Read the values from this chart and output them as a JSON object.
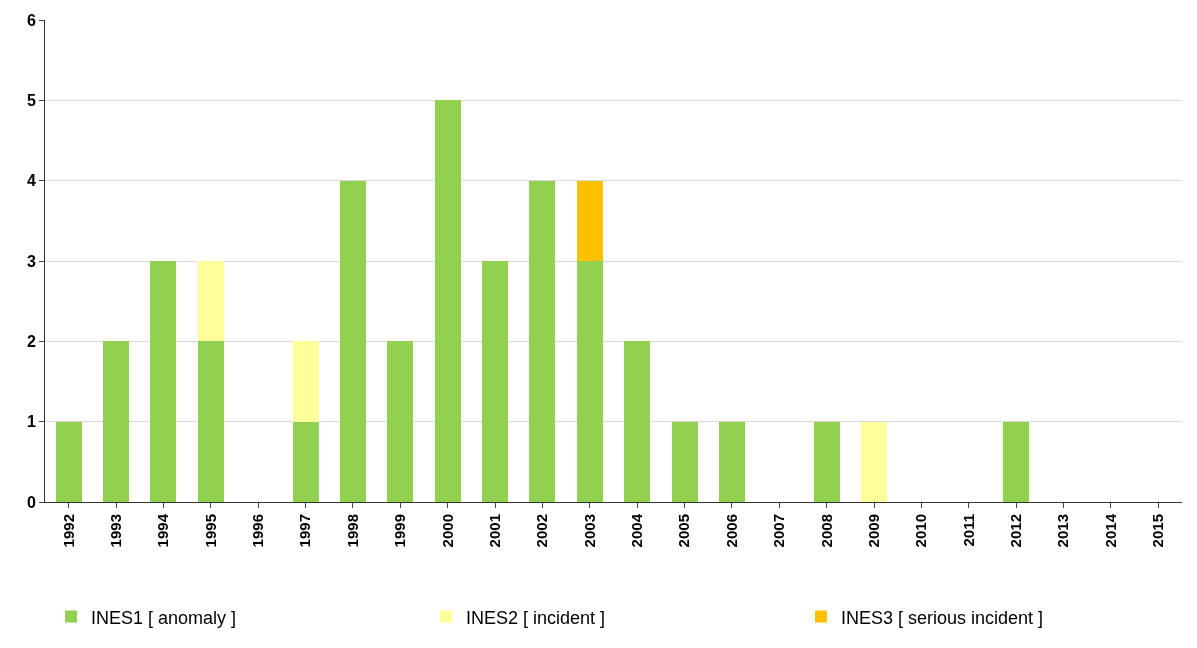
{
  "chart_data": {
    "type": "bar",
    "stacked": true,
    "categories": [
      "1992",
      "1993",
      "1994",
      "1995",
      "1996",
      "1997",
      "1998",
      "1999",
      "2000",
      "2001",
      "2002",
      "2003",
      "2004",
      "2005",
      "2006",
      "2007",
      "2008",
      "2009",
      "2010",
      "2011",
      "2012",
      "2013",
      "2014",
      "2015"
    ],
    "series": [
      {
        "name": "INES1 [ anomaly ]",
        "color": "#92d050",
        "values": [
          1,
          2,
          3,
          2,
          0,
          1,
          4,
          2,
          5,
          3,
          4,
          3,
          2,
          1,
          1,
          0,
          1,
          0,
          0,
          0,
          1,
          0,
          0,
          0
        ]
      },
      {
        "name": "INES2 [ incident ]",
        "color": "#ffff99",
        "values": [
          0,
          0,
          0,
          1,
          0,
          1,
          0,
          0,
          0,
          0,
          0,
          0,
          0,
          0,
          0,
          0,
          0,
          1,
          0,
          0,
          0,
          0,
          0,
          0
        ]
      },
      {
        "name": "INES3 [ serious incident ]",
        "color": "#ffc000",
        "values": [
          0,
          0,
          0,
          0,
          0,
          0,
          0,
          0,
          0,
          0,
          0,
          1,
          0,
          0,
          0,
          0,
          0,
          0,
          0,
          0,
          0,
          0,
          0,
          0
        ]
      }
    ],
    "ylim": [
      0,
      6
    ],
    "yticks": [
      0,
      1,
      2,
      3,
      4,
      5,
      6
    ],
    "grid": "y",
    "legend": "bottom"
  }
}
